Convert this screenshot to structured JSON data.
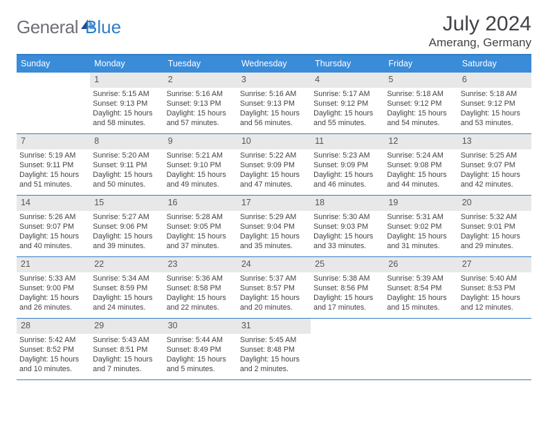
{
  "logo": {
    "part1": "General",
    "part2": "Blue"
  },
  "title": "July 2024",
  "location": "Amerang, Germany",
  "colors": {
    "header_bg": "#3a8bd8",
    "accent": "#2f7dc4",
    "daynum_bg": "#e8e8e8",
    "text": "#424242",
    "logo_gray": "#6d7077",
    "logo_blue": "#2f7dc4"
  },
  "weekdays": [
    "Sunday",
    "Monday",
    "Tuesday",
    "Wednesday",
    "Thursday",
    "Friday",
    "Saturday"
  ],
  "weeks": [
    [
      {
        "n": "",
        "sr": "",
        "ss": "",
        "dl": ""
      },
      {
        "n": "1",
        "sr": "Sunrise: 5:15 AM",
        "ss": "Sunset: 9:13 PM",
        "dl": "Daylight: 15 hours and 58 minutes."
      },
      {
        "n": "2",
        "sr": "Sunrise: 5:16 AM",
        "ss": "Sunset: 9:13 PM",
        "dl": "Daylight: 15 hours and 57 minutes."
      },
      {
        "n": "3",
        "sr": "Sunrise: 5:16 AM",
        "ss": "Sunset: 9:13 PM",
        "dl": "Daylight: 15 hours and 56 minutes."
      },
      {
        "n": "4",
        "sr": "Sunrise: 5:17 AM",
        "ss": "Sunset: 9:12 PM",
        "dl": "Daylight: 15 hours and 55 minutes."
      },
      {
        "n": "5",
        "sr": "Sunrise: 5:18 AM",
        "ss": "Sunset: 9:12 PM",
        "dl": "Daylight: 15 hours and 54 minutes."
      },
      {
        "n": "6",
        "sr": "Sunrise: 5:18 AM",
        "ss": "Sunset: 9:12 PM",
        "dl": "Daylight: 15 hours and 53 minutes."
      }
    ],
    [
      {
        "n": "7",
        "sr": "Sunrise: 5:19 AM",
        "ss": "Sunset: 9:11 PM",
        "dl": "Daylight: 15 hours and 51 minutes."
      },
      {
        "n": "8",
        "sr": "Sunrise: 5:20 AM",
        "ss": "Sunset: 9:11 PM",
        "dl": "Daylight: 15 hours and 50 minutes."
      },
      {
        "n": "9",
        "sr": "Sunrise: 5:21 AM",
        "ss": "Sunset: 9:10 PM",
        "dl": "Daylight: 15 hours and 49 minutes."
      },
      {
        "n": "10",
        "sr": "Sunrise: 5:22 AM",
        "ss": "Sunset: 9:09 PM",
        "dl": "Daylight: 15 hours and 47 minutes."
      },
      {
        "n": "11",
        "sr": "Sunrise: 5:23 AM",
        "ss": "Sunset: 9:09 PM",
        "dl": "Daylight: 15 hours and 46 minutes."
      },
      {
        "n": "12",
        "sr": "Sunrise: 5:24 AM",
        "ss": "Sunset: 9:08 PM",
        "dl": "Daylight: 15 hours and 44 minutes."
      },
      {
        "n": "13",
        "sr": "Sunrise: 5:25 AM",
        "ss": "Sunset: 9:07 PM",
        "dl": "Daylight: 15 hours and 42 minutes."
      }
    ],
    [
      {
        "n": "14",
        "sr": "Sunrise: 5:26 AM",
        "ss": "Sunset: 9:07 PM",
        "dl": "Daylight: 15 hours and 40 minutes."
      },
      {
        "n": "15",
        "sr": "Sunrise: 5:27 AM",
        "ss": "Sunset: 9:06 PM",
        "dl": "Daylight: 15 hours and 39 minutes."
      },
      {
        "n": "16",
        "sr": "Sunrise: 5:28 AM",
        "ss": "Sunset: 9:05 PM",
        "dl": "Daylight: 15 hours and 37 minutes."
      },
      {
        "n": "17",
        "sr": "Sunrise: 5:29 AM",
        "ss": "Sunset: 9:04 PM",
        "dl": "Daylight: 15 hours and 35 minutes."
      },
      {
        "n": "18",
        "sr": "Sunrise: 5:30 AM",
        "ss": "Sunset: 9:03 PM",
        "dl": "Daylight: 15 hours and 33 minutes."
      },
      {
        "n": "19",
        "sr": "Sunrise: 5:31 AM",
        "ss": "Sunset: 9:02 PM",
        "dl": "Daylight: 15 hours and 31 minutes."
      },
      {
        "n": "20",
        "sr": "Sunrise: 5:32 AM",
        "ss": "Sunset: 9:01 PM",
        "dl": "Daylight: 15 hours and 29 minutes."
      }
    ],
    [
      {
        "n": "21",
        "sr": "Sunrise: 5:33 AM",
        "ss": "Sunset: 9:00 PM",
        "dl": "Daylight: 15 hours and 26 minutes."
      },
      {
        "n": "22",
        "sr": "Sunrise: 5:34 AM",
        "ss": "Sunset: 8:59 PM",
        "dl": "Daylight: 15 hours and 24 minutes."
      },
      {
        "n": "23",
        "sr": "Sunrise: 5:36 AM",
        "ss": "Sunset: 8:58 PM",
        "dl": "Daylight: 15 hours and 22 minutes."
      },
      {
        "n": "24",
        "sr": "Sunrise: 5:37 AM",
        "ss": "Sunset: 8:57 PM",
        "dl": "Daylight: 15 hours and 20 minutes."
      },
      {
        "n": "25",
        "sr": "Sunrise: 5:38 AM",
        "ss": "Sunset: 8:56 PM",
        "dl": "Daylight: 15 hours and 17 minutes."
      },
      {
        "n": "26",
        "sr": "Sunrise: 5:39 AM",
        "ss": "Sunset: 8:54 PM",
        "dl": "Daylight: 15 hours and 15 minutes."
      },
      {
        "n": "27",
        "sr": "Sunrise: 5:40 AM",
        "ss": "Sunset: 8:53 PM",
        "dl": "Daylight: 15 hours and 12 minutes."
      }
    ],
    [
      {
        "n": "28",
        "sr": "Sunrise: 5:42 AM",
        "ss": "Sunset: 8:52 PM",
        "dl": "Daylight: 15 hours and 10 minutes."
      },
      {
        "n": "29",
        "sr": "Sunrise: 5:43 AM",
        "ss": "Sunset: 8:51 PM",
        "dl": "Daylight: 15 hours and 7 minutes."
      },
      {
        "n": "30",
        "sr": "Sunrise: 5:44 AM",
        "ss": "Sunset: 8:49 PM",
        "dl": "Daylight: 15 hours and 5 minutes."
      },
      {
        "n": "31",
        "sr": "Sunrise: 5:45 AM",
        "ss": "Sunset: 8:48 PM",
        "dl": "Daylight: 15 hours and 2 minutes."
      },
      {
        "n": "",
        "sr": "",
        "ss": "",
        "dl": ""
      },
      {
        "n": "",
        "sr": "",
        "ss": "",
        "dl": ""
      },
      {
        "n": "",
        "sr": "",
        "ss": "",
        "dl": ""
      }
    ]
  ]
}
